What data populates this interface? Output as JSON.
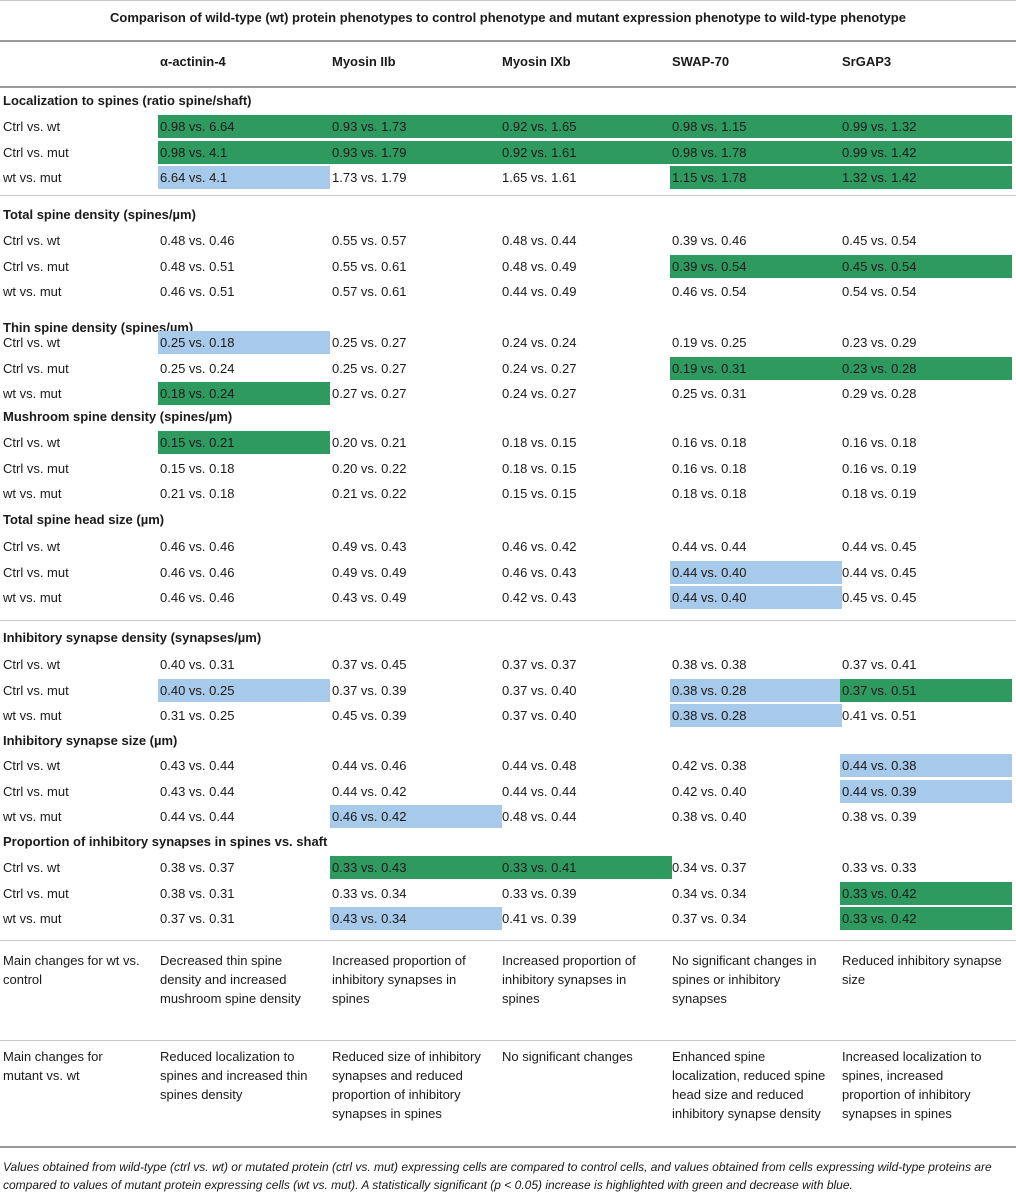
{
  "caption": "Comparison of wild-type (wt) protein phenotypes to control phenotype and mutant expression phenotype to wild-type phenotype",
  "columns": [
    "α-actinin-4",
    "Myosin IIb",
    "Myosin IXb",
    "SWAP-70",
    "SrGAP3"
  ],
  "row_labels": [
    "Ctrl vs. wt",
    "Ctrl vs. mut",
    "wt vs. mut"
  ],
  "legend_colors": {
    "increase": "#2f9a60",
    "decrease": "#a7c9ea"
  },
  "sections": [
    {
      "title": "Localization to spines (ratio spine/shaft)",
      "rows": [
        {
          "label": "Ctrl vs. wt",
          "cells": [
            {
              "text": "0.98 vs. 6.64",
              "sig": "increase"
            },
            {
              "text": "0.93 vs. 1.73",
              "sig": "increase"
            },
            {
              "text": "0.92 vs. 1.65",
              "sig": "increase"
            },
            {
              "text": "0.98 vs. 1.15",
              "sig": "increase"
            },
            {
              "text": "0.99 vs. 1.32",
              "sig": "increase"
            }
          ]
        },
        {
          "label": "Ctrl vs. mut",
          "cells": [
            {
              "text": "0.98 vs. 4.1",
              "sig": "increase"
            },
            {
              "text": "0.93 vs. 1.79",
              "sig": "increase"
            },
            {
              "text": "0.92 vs. 1.61",
              "sig": "increase"
            },
            {
              "text": "0.98 vs. 1.78",
              "sig": "increase"
            },
            {
              "text": "0.99 vs. 1.42",
              "sig": "increase"
            }
          ]
        },
        {
          "label": "wt vs. mut",
          "cells": [
            {
              "text": "6.64 vs. 4.1",
              "sig": "decrease"
            },
            {
              "text": "1.73 vs. 1.79",
              "sig": ""
            },
            {
              "text": "1.65 vs. 1.61",
              "sig": ""
            },
            {
              "text": "1.15 vs. 1.78",
              "sig": "increase"
            },
            {
              "text": "1.32 vs. 1.42",
              "sig": "increase"
            }
          ]
        }
      ]
    },
    {
      "title": "Total spine density (spines/µm)",
      "rows": [
        {
          "label": "Ctrl vs. wt",
          "cells": [
            {
              "text": "0.48 vs. 0.46",
              "sig": ""
            },
            {
              "text": "0.55 vs. 0.57",
              "sig": ""
            },
            {
              "text": "0.48 vs. 0.44",
              "sig": ""
            },
            {
              "text": "0.39 vs. 0.46",
              "sig": ""
            },
            {
              "text": "0.45 vs. 0.54",
              "sig": ""
            }
          ]
        },
        {
          "label": "Ctrl vs. mut",
          "cells": [
            {
              "text": "0.48 vs. 0.51",
              "sig": ""
            },
            {
              "text": "0.55 vs. 0.61",
              "sig": ""
            },
            {
              "text": "0.48 vs. 0.49",
              "sig": ""
            },
            {
              "text": "0.39 vs. 0.54",
              "sig": "increase"
            },
            {
              "text": "0.45 vs. 0.54",
              "sig": "increase"
            }
          ]
        },
        {
          "label": "wt vs. mut",
          "cells": [
            {
              "text": "0.46 vs. 0.51",
              "sig": ""
            },
            {
              "text": "0.57 vs. 0.61",
              "sig": ""
            },
            {
              "text": "0.44 vs. 0.49",
              "sig": ""
            },
            {
              "text": "0.46 vs. 0.54",
              "sig": ""
            },
            {
              "text": "0.54 vs. 0.54",
              "sig": ""
            }
          ]
        }
      ]
    },
    {
      "title": "Thin spine density (spines/µm)",
      "rows": [
        {
          "label": "Ctrl vs. wt",
          "cells": [
            {
              "text": "0.25 vs. 0.18",
              "sig": "decrease"
            },
            {
              "text": "0.25 vs. 0.27",
              "sig": ""
            },
            {
              "text": "0.24 vs. 0.24",
              "sig": ""
            },
            {
              "text": "0.19 vs. 0.25",
              "sig": ""
            },
            {
              "text": "0.23 vs. 0.29",
              "sig": ""
            }
          ]
        },
        {
          "label": "Ctrl vs. mut",
          "cells": [
            {
              "text": "0.25 vs. 0.24",
              "sig": ""
            },
            {
              "text": "0.25 vs. 0.27",
              "sig": ""
            },
            {
              "text": "0.24 vs. 0.27",
              "sig": ""
            },
            {
              "text": "0.19 vs. 0.31",
              "sig": "increase"
            },
            {
              "text": "0.23 vs. 0.28",
              "sig": "increase"
            }
          ]
        },
        {
          "label": "wt vs. mut",
          "cells": [
            {
              "text": "0.18 vs. 0.24",
              "sig": "increase"
            },
            {
              "text": "0.27 vs. 0.27",
              "sig": ""
            },
            {
              "text": "0.24 vs. 0.27",
              "sig": ""
            },
            {
              "text": "0.25 vs. 0.31",
              "sig": ""
            },
            {
              "text": "0.29 vs. 0.28",
              "sig": ""
            }
          ]
        }
      ]
    },
    {
      "title": "Mushroom spine density (spines/µm)",
      "rows": [
        {
          "label": "Ctrl vs. wt",
          "cells": [
            {
              "text": "0.15 vs. 0.21",
              "sig": "increase"
            },
            {
              "text": "0.20 vs. 0.21",
              "sig": ""
            },
            {
              "text": "0.18 vs. 0.15",
              "sig": ""
            },
            {
              "text": "0.16 vs. 0.18",
              "sig": ""
            },
            {
              "text": "0.16 vs. 0.18",
              "sig": ""
            }
          ]
        },
        {
          "label": "Ctrl vs. mut",
          "cells": [
            {
              "text": "0.15 vs. 0.18",
              "sig": ""
            },
            {
              "text": "0.20 vs. 0.22",
              "sig": ""
            },
            {
              "text": "0.18 vs. 0.15",
              "sig": ""
            },
            {
              "text": "0.16 vs. 0.18",
              "sig": ""
            },
            {
              "text": "0.16 vs. 0.19",
              "sig": ""
            }
          ]
        },
        {
          "label": "wt vs. mut",
          "cells": [
            {
              "text": "0.21 vs. 0.18",
              "sig": ""
            },
            {
              "text": "0.21 vs. 0.22",
              "sig": ""
            },
            {
              "text": "0.15 vs. 0.15",
              "sig": ""
            },
            {
              "text": "0.18 vs. 0.18",
              "sig": ""
            },
            {
              "text": "0.18 vs. 0.19",
              "sig": ""
            }
          ]
        }
      ]
    },
    {
      "title": "Total spine head size (µm)",
      "rows": [
        {
          "label": "Ctrl vs. wt",
          "cells": [
            {
              "text": "0.46 vs. 0.46",
              "sig": ""
            },
            {
              "text": "0.49 vs. 0.43",
              "sig": ""
            },
            {
              "text": "0.46 vs. 0.42",
              "sig": ""
            },
            {
              "text": "0.44 vs. 0.44",
              "sig": ""
            },
            {
              "text": "0.44 vs. 0.45",
              "sig": ""
            }
          ]
        },
        {
          "label": "Ctrl vs. mut",
          "cells": [
            {
              "text": "0.46 vs. 0.46",
              "sig": ""
            },
            {
              "text": "0.49 vs. 0.49",
              "sig": ""
            },
            {
              "text": "0.46 vs. 0.43",
              "sig": ""
            },
            {
              "text": "0.44 vs. 0.40",
              "sig": "decrease"
            },
            {
              "text": "0.44 vs. 0.45",
              "sig": ""
            }
          ]
        },
        {
          "label": "wt vs. mut",
          "cells": [
            {
              "text": "0.46 vs. 0.46",
              "sig": ""
            },
            {
              "text": "0.43 vs. 0.49",
              "sig": ""
            },
            {
              "text": "0.42 vs. 0.43",
              "sig": ""
            },
            {
              "text": "0.44 vs. 0.40",
              "sig": "decrease"
            },
            {
              "text": "0.45 vs. 0.45",
              "sig": ""
            }
          ]
        }
      ]
    },
    {
      "title": "Inhibitory synapse density (synapses/µm)",
      "rows": [
        {
          "label": "Ctrl vs. wt",
          "cells": [
            {
              "text": "0.40 vs. 0.31",
              "sig": ""
            },
            {
              "text": "0.37 vs. 0.45",
              "sig": ""
            },
            {
              "text": "0.37 vs. 0.37",
              "sig": ""
            },
            {
              "text": "0.38 vs. 0.38",
              "sig": ""
            },
            {
              "text": "0.37 vs. 0.41",
              "sig": ""
            }
          ]
        },
        {
          "label": "Ctrl vs. mut",
          "cells": [
            {
              "text": "0.40 vs. 0.25",
              "sig": "decrease"
            },
            {
              "text": "0.37 vs. 0.39",
              "sig": ""
            },
            {
              "text": "0.37 vs. 0.40",
              "sig": ""
            },
            {
              "text": "0.38 vs. 0.28",
              "sig": "decrease"
            },
            {
              "text": "0.37 vs. 0.51",
              "sig": "increase"
            }
          ]
        },
        {
          "label": "wt vs. mut",
          "cells": [
            {
              "text": "0.31 vs. 0.25",
              "sig": ""
            },
            {
              "text": "0.45 vs. 0.39",
              "sig": ""
            },
            {
              "text": "0.37 vs. 0.40",
              "sig": ""
            },
            {
              "text": "0.38 vs. 0.28",
              "sig": "decrease"
            },
            {
              "text": "0.41 vs. 0.51",
              "sig": ""
            }
          ]
        }
      ]
    },
    {
      "title": "Inhibitory synapse size (µm)",
      "rows": [
        {
          "label": "Ctrl vs. wt",
          "cells": [
            {
              "text": "0.43 vs. 0.44",
              "sig": ""
            },
            {
              "text": "0.44 vs. 0.46",
              "sig": ""
            },
            {
              "text": "0.44 vs. 0.48",
              "sig": ""
            },
            {
              "text": "0.42 vs. 0.38",
              "sig": ""
            },
            {
              "text": "0.44 vs. 0.38",
              "sig": "decrease"
            }
          ]
        },
        {
          "label": "Ctrl vs. mut",
          "cells": [
            {
              "text": "0.43 vs. 0.44",
              "sig": ""
            },
            {
              "text": "0.44 vs. 0.42",
              "sig": ""
            },
            {
              "text": "0.44 vs. 0.44",
              "sig": ""
            },
            {
              "text": "0.42 vs. 0.40",
              "sig": ""
            },
            {
              "text": "0.44 vs. 0.39",
              "sig": "decrease"
            }
          ]
        },
        {
          "label": "wt vs. mut",
          "cells": [
            {
              "text": "0.44 vs. 0.44",
              "sig": ""
            },
            {
              "text": "0.46 vs. 0.42",
              "sig": "decrease"
            },
            {
              "text": "0.48 vs. 0.44",
              "sig": ""
            },
            {
              "text": "0.38 vs. 0.40",
              "sig": ""
            },
            {
              "text": "0.38 vs. 0.39",
              "sig": ""
            }
          ]
        }
      ]
    },
    {
      "title": "Proportion of inhibitory synapses in spines vs. shaft",
      "rows": [
        {
          "label": "Ctrl vs. wt",
          "cells": [
            {
              "text": "0.38 vs. 0.37",
              "sig": ""
            },
            {
              "text": "0.33 vs. 0.43",
              "sig": "increase"
            },
            {
              "text": "0.33 vs. 0.41",
              "sig": "increase"
            },
            {
              "text": "0.34 vs. 0.37",
              "sig": ""
            },
            {
              "text": "0.33 vs. 0.33",
              "sig": ""
            }
          ]
        },
        {
          "label": "Ctrl vs. mut",
          "cells": [
            {
              "text": "0.38 vs. 0.31",
              "sig": ""
            },
            {
              "text": "0.33 vs. 0.34",
              "sig": ""
            },
            {
              "text": "0.33 vs. 0.39",
              "sig": ""
            },
            {
              "text": "0.34 vs. 0.34",
              "sig": ""
            },
            {
              "text": "0.33 vs. 0.42",
              "sig": "increase"
            }
          ]
        },
        {
          "label": "wt vs. mut",
          "cells": [
            {
              "text": "0.37 vs. 0.31",
              "sig": ""
            },
            {
              "text": "0.43 vs. 0.34",
              "sig": "decrease"
            },
            {
              "text": "0.41 vs. 0.39",
              "sig": ""
            },
            {
              "text": "0.37 vs. 0.34",
              "sig": ""
            },
            {
              "text": "0.33 vs. 0.42",
              "sig": "increase"
            }
          ]
        }
      ]
    }
  ],
  "summaries": [
    {
      "label": "Main changes for wt vs. control",
      "cells": [
        "Decreased thin spine density and increased mushroom spine density",
        "Increased proportion of inhibitory synapses in spines",
        "Increased proportion of inhibitory synapses in spines",
        "No significant changes in spines or inhibitory synapses",
        "Reduced inhibitory synapse size"
      ]
    },
    {
      "label": "Main changes for mutant vs. wt",
      "cells": [
        "Reduced localization to spines and increased thin spines density",
        "Reduced size of inhibitory synapses and reduced proportion of inhibitory synapses in spines",
        "No significant changes",
        "Enhanced spine localization, reduced spine head size and reduced inhibitory synapse density",
        "Increased localization to spines, increased proportion of inhibitory synapses in spines"
      ]
    }
  ],
  "footnote": "Values obtained from wild-type (ctrl vs. wt) or mutated protein (ctrl vs. mut) expressing cells are compared to control cells, and values obtained from cells expressing wild-type proteins are compared to values of mutant protein expressing cells (wt vs. mut). A statistically significant (p < 0.05) increase is highlighted with green and decrease with blue."
}
